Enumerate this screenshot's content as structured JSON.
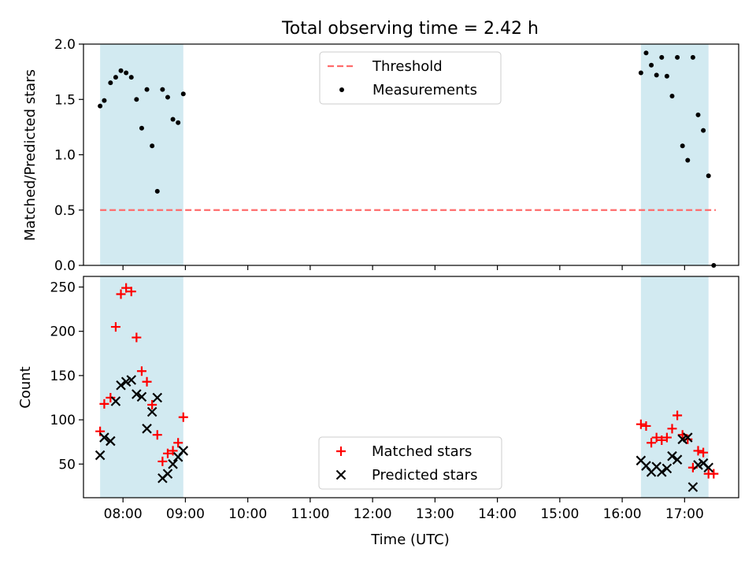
{
  "title": "Total observing time = 2.42 h",
  "colors": {
    "band": "#add8e6",
    "threshold": "#ff6b6b",
    "measurement": "#000000",
    "matched": "#ff0000",
    "predicted": "#000000"
  },
  "chart_data": [
    {
      "type": "scatter",
      "ylabel": "Matched/Predicted stars",
      "xlim": [
        "07:22",
        "17:52"
      ],
      "ylim": [
        0,
        2.0
      ],
      "yticks": [
        0.0,
        0.5,
        1.0,
        1.5,
        2.0
      ],
      "ytick_labels": [
        "0.0",
        "0.5",
        "1.0",
        "1.5",
        "2.0"
      ],
      "observing_windows": [
        [
          "07:38",
          "08:58"
        ],
        [
          "16:18",
          "17:23"
        ]
      ],
      "legend": {
        "position": "upper center",
        "entries": [
          "Threshold",
          "Measurements"
        ]
      },
      "series": [
        {
          "name": "Threshold",
          "style": "dashed-line",
          "x": [
            "07:38",
            "17:30"
          ],
          "y": [
            0.5,
            0.5
          ]
        },
        {
          "name": "Measurements",
          "style": "dot",
          "points": [
            [
              "07:38",
              1.44
            ],
            [
              "07:42",
              1.49
            ],
            [
              "07:48",
              1.65
            ],
            [
              "07:53",
              1.7
            ],
            [
              "07:58",
              1.76
            ],
            [
              "08:03",
              1.74
            ],
            [
              "08:08",
              1.7
            ],
            [
              "08:13",
              1.5
            ],
            [
              "08:18",
              1.24
            ],
            [
              "08:23",
              1.59
            ],
            [
              "08:28",
              1.08
            ],
            [
              "08:33",
              0.67
            ],
            [
              "08:38",
              1.59
            ],
            [
              "08:43",
              1.52
            ],
            [
              "08:48",
              1.32
            ],
            [
              "08:53",
              1.29
            ],
            [
              "08:58",
              1.55
            ],
            [
              "16:18",
              1.74
            ],
            [
              "16:23",
              1.92
            ],
            [
              "16:28",
              1.81
            ],
            [
              "16:33",
              1.72
            ],
            [
              "16:38",
              1.88
            ],
            [
              "16:43",
              1.71
            ],
            [
              "16:48",
              1.53
            ],
            [
              "16:53",
              1.88
            ],
            [
              "16:58",
              1.08
            ],
            [
              "17:03",
              0.95
            ],
            [
              "17:08",
              1.88
            ],
            [
              "17:13",
              1.36
            ],
            [
              "17:18",
              1.22
            ],
            [
              "17:23",
              0.81
            ],
            [
              "17:28",
              0.0
            ]
          ]
        }
      ]
    },
    {
      "type": "scatter",
      "ylabel": "Count",
      "xlabel": "Time (UTC)",
      "xlim": [
        "07:22",
        "17:52"
      ],
      "ylim": [
        12,
        262
      ],
      "yticks": [
        50,
        100,
        150,
        200,
        250
      ],
      "xticks": [
        "08:00",
        "09:00",
        "10:00",
        "11:00",
        "12:00",
        "13:00",
        "14:00",
        "15:00",
        "16:00",
        "17:00"
      ],
      "observing_windows": [
        [
          "07:38",
          "08:58"
        ],
        [
          "16:18",
          "17:23"
        ]
      ],
      "legend": {
        "position": "lower center",
        "entries": [
          "Matched stars",
          "Predicted stars"
        ]
      },
      "series": [
        {
          "name": "Matched stars",
          "marker": "plus",
          "points": [
            [
              "07:38",
              87
            ],
            [
              "07:42",
              118
            ],
            [
              "07:48",
              125
            ],
            [
              "07:53",
              205
            ],
            [
              "07:58",
              242
            ],
            [
              "08:03",
              249
            ],
            [
              "08:08",
              245
            ],
            [
              "08:13",
              193
            ],
            [
              "08:18",
              155
            ],
            [
              "08:23",
              143
            ],
            [
              "08:28",
              117
            ],
            [
              "08:33",
              83
            ],
            [
              "08:38",
              53
            ],
            [
              "08:43",
              62
            ],
            [
              "08:48",
              65
            ],
            [
              "08:53",
              74
            ],
            [
              "08:58",
              103
            ],
            [
              "16:18",
              95
            ],
            [
              "16:23",
              93
            ],
            [
              "16:28",
              74
            ],
            [
              "16:33",
              80
            ],
            [
              "16:38",
              77
            ],
            [
              "16:43",
              80
            ],
            [
              "16:48",
              90
            ],
            [
              "16:53",
              105
            ],
            [
              "16:58",
              83
            ],
            [
              "17:03",
              78
            ],
            [
              "17:08",
              46
            ],
            [
              "17:13",
              65
            ],
            [
              "17:18",
              63
            ],
            [
              "17:23",
              39
            ],
            [
              "17:28",
              39
            ]
          ]
        },
        {
          "name": "Predicted stars",
          "marker": "x",
          "points": [
            [
              "07:38",
              60
            ],
            [
              "07:42",
              80
            ],
            [
              "07:48",
              76
            ],
            [
              "07:53",
              121
            ],
            [
              "07:58",
              139
            ],
            [
              "08:03",
              143
            ],
            [
              "08:08",
              145
            ],
            [
              "08:13",
              129
            ],
            [
              "08:18",
              126
            ],
            [
              "08:23",
              90
            ],
            [
              "08:28",
              109
            ],
            [
              "08:33",
              125
            ],
            [
              "08:38",
              34
            ],
            [
              "08:43",
              39
            ],
            [
              "08:48",
              50
            ],
            [
              "08:53",
              58
            ],
            [
              "08:58",
              65
            ],
            [
              "16:18",
              54
            ],
            [
              "16:23",
              48
            ],
            [
              "16:28",
              41
            ],
            [
              "16:33",
              47
            ],
            [
              "16:38",
              41
            ],
            [
              "16:43",
              45
            ],
            [
              "16:48",
              59
            ],
            [
              "16:53",
              55
            ],
            [
              "16:58",
              78
            ],
            [
              "17:03",
              80
            ],
            [
              "17:08",
              24
            ],
            [
              "17:13",
              49
            ],
            [
              "17:18",
              51
            ],
            [
              "17:23",
              46
            ]
          ]
        }
      ]
    }
  ]
}
